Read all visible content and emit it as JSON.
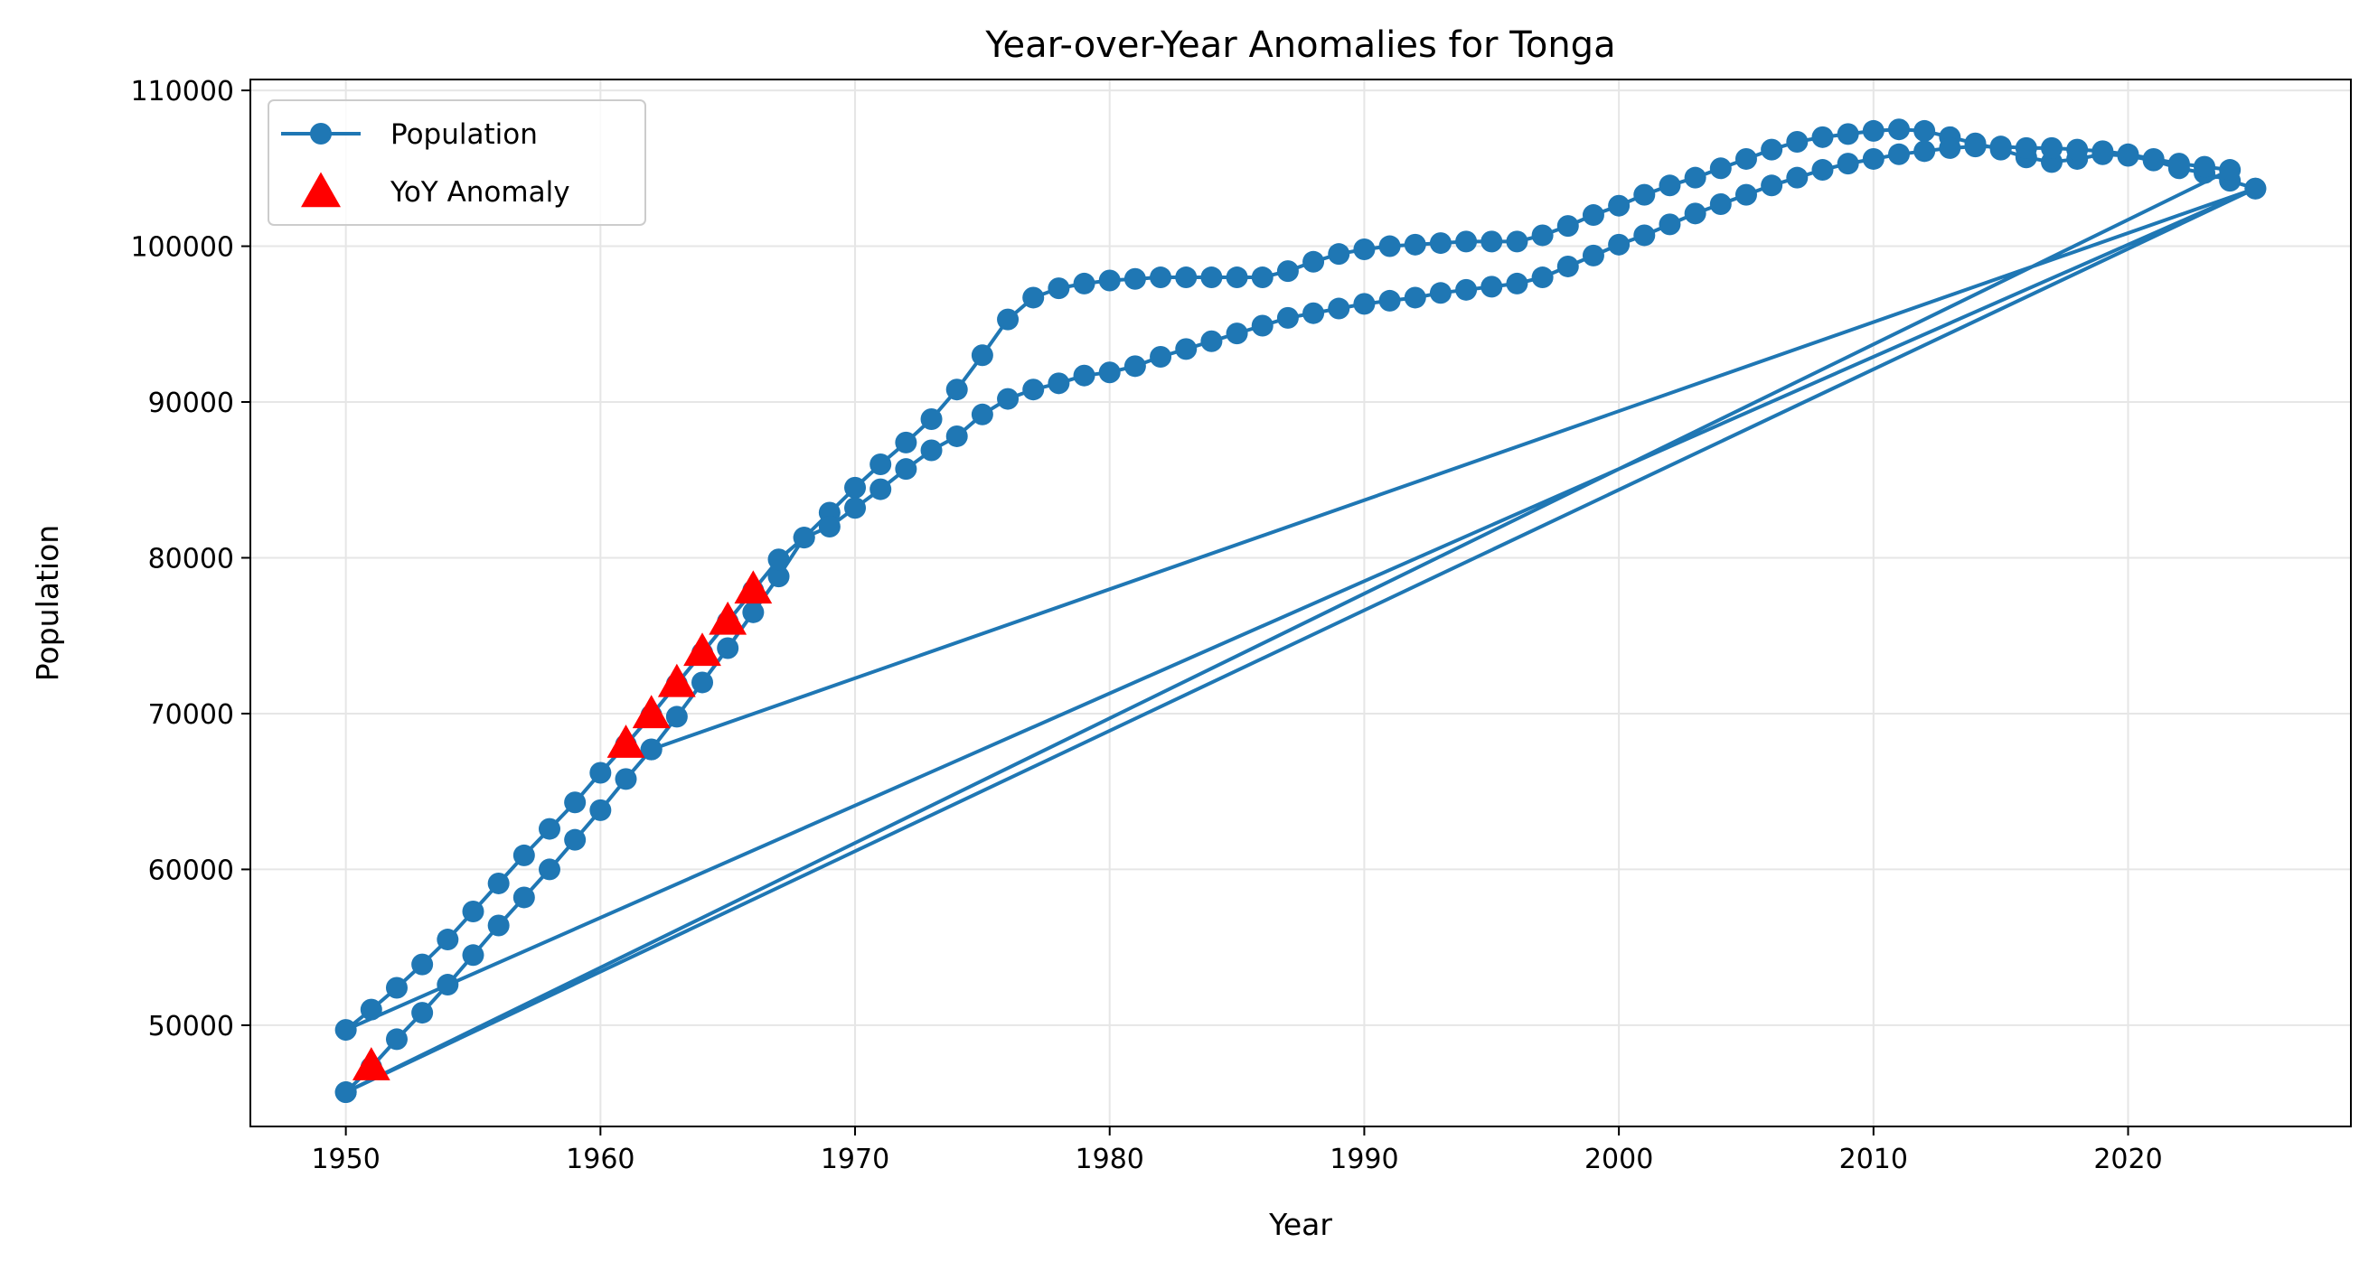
{
  "chart_data": {
    "type": "line",
    "title": "Year-over-Year Anomalies for Tonga",
    "xlabel": "Year",
    "ylabel": "Population",
    "xlim": [
      1946.25,
      2028.75
    ],
    "ylim": [
      43500,
      110700
    ],
    "xticks": [
      1950,
      1960,
      1970,
      1980,
      1990,
      2000,
      2010,
      2020
    ],
    "yticks": [
      50000,
      60000,
      70000,
      80000,
      90000,
      100000,
      110000
    ],
    "grid": true,
    "legend_position": "top-left",
    "colors": {
      "line": "#1f77b4",
      "anomaly": "#ff0000",
      "grid": "#e6e6e6",
      "axes": "#000000"
    },
    "series": [
      {
        "name": "Population",
        "marker": "circle",
        "points": [
          [
            1950,
            45700
          ],
          [
            1951,
            47300
          ],
          [
            1952,
            49100
          ],
          [
            1953,
            50800
          ],
          [
            1954,
            52600
          ],
          [
            1955,
            54500
          ],
          [
            1956,
            56400
          ],
          [
            1957,
            58200
          ],
          [
            1958,
            60000
          ],
          [
            1959,
            61900
          ],
          [
            1960,
            63800
          ],
          [
            1961,
            65800
          ],
          [
            1962,
            67700
          ],
          [
            1963,
            69800
          ],
          [
            1964,
            72000
          ],
          [
            1965,
            74200
          ],
          [
            1966,
            76500
          ],
          [
            1967,
            78800
          ],
          [
            1968,
            81300
          ],
          [
            1969,
            82900
          ],
          [
            1970,
            84500
          ],
          [
            1971,
            86000
          ],
          [
            1972,
            87400
          ],
          [
            1973,
            88900
          ],
          [
            1974,
            90800
          ],
          [
            1975,
            93000
          ],
          [
            1976,
            95300
          ],
          [
            1977,
            96700
          ],
          [
            1978,
            97300
          ],
          [
            1979,
            97600
          ],
          [
            1980,
            97800
          ],
          [
            1981,
            97900
          ],
          [
            1982,
            98000
          ],
          [
            1983,
            98000
          ],
          [
            1984,
            98000
          ],
          [
            1985,
            98000
          ],
          [
            1986,
            98000
          ],
          [
            1987,
            98400
          ],
          [
            1988,
            99000
          ],
          [
            1989,
            99500
          ],
          [
            1990,
            99800
          ],
          [
            1991,
            100000
          ],
          [
            1992,
            100100
          ],
          [
            1993,
            100200
          ],
          [
            1994,
            100300
          ],
          [
            1995,
            100300
          ],
          [
            1996,
            100300
          ],
          [
            1997,
            100700
          ],
          [
            1998,
            101300
          ],
          [
            1999,
            102000
          ],
          [
            2000,
            102600
          ],
          [
            2001,
            103300
          ],
          [
            2002,
            103900
          ],
          [
            2003,
            104400
          ],
          [
            2004,
            105000
          ],
          [
            2005,
            105600
          ],
          [
            2006,
            106200
          ],
          [
            2007,
            106700
          ],
          [
            2008,
            107000
          ],
          [
            2009,
            107200
          ],
          [
            2010,
            107400
          ],
          [
            2011,
            107500
          ],
          [
            2012,
            107400
          ],
          [
            2013,
            107000
          ],
          [
            2014,
            106600
          ],
          [
            2015,
            106200
          ],
          [
            2016,
            105700
          ],
          [
            2017,
            105400
          ],
          [
            2018,
            105600
          ],
          [
            2019,
            105900
          ],
          [
            2020,
            105800
          ],
          [
            2021,
            105500
          ],
          [
            2022,
            105000
          ],
          [
            2023,
            104700
          ],
          [
            2024,
            104200
          ],
          [
            2025,
            103700
          ],
          [
            1950,
            49700
          ],
          [
            1951,
            51000
          ],
          [
            1952,
            52400
          ],
          [
            1953,
            53900
          ],
          [
            1954,
            55500
          ],
          [
            1955,
            57300
          ],
          [
            1956,
            59100
          ],
          [
            1957,
            60900
          ],
          [
            1958,
            62600
          ],
          [
            1959,
            64300
          ],
          [
            1960,
            66200
          ],
          [
            1961,
            68000
          ],
          [
            1962,
            69900
          ],
          [
            1963,
            71900
          ],
          [
            1964,
            73900
          ],
          [
            1965,
            75900
          ],
          [
            1966,
            77900
          ],
          [
            1967,
            79900
          ],
          [
            1968,
            81300
          ],
          [
            1969,
            82000
          ],
          [
            1970,
            83200
          ],
          [
            1971,
            84400
          ],
          [
            1972,
            85700
          ],
          [
            1973,
            86900
          ],
          [
            1974,
            87800
          ],
          [
            1975,
            89200
          ],
          [
            1976,
            90200
          ],
          [
            1977,
            90800
          ],
          [
            1978,
            91200
          ],
          [
            1979,
            91700
          ],
          [
            1980,
            91900
          ],
          [
            1981,
            92300
          ],
          [
            1982,
            92900
          ],
          [
            1983,
            93400
          ],
          [
            1984,
            93900
          ],
          [
            1985,
            94400
          ],
          [
            1986,
            94900
          ],
          [
            1987,
            95400
          ],
          [
            1988,
            95700
          ],
          [
            1989,
            96000
          ],
          [
            1990,
            96300
          ],
          [
            1991,
            96500
          ],
          [
            1992,
            96700
          ],
          [
            1993,
            97000
          ],
          [
            1994,
            97200
          ],
          [
            1995,
            97400
          ],
          [
            1996,
            97600
          ],
          [
            1997,
            98000
          ],
          [
            1998,
            98700
          ],
          [
            1999,
            99400
          ],
          [
            2000,
            100100
          ],
          [
            2001,
            100700
          ],
          [
            2002,
            101400
          ],
          [
            2003,
            102100
          ],
          [
            2004,
            102700
          ],
          [
            2005,
            103300
          ],
          [
            2006,
            103900
          ],
          [
            2007,
            104400
          ],
          [
            2008,
            104900
          ],
          [
            2009,
            105300
          ],
          [
            2010,
            105600
          ],
          [
            2011,
            105900
          ],
          [
            2012,
            106100
          ],
          [
            2013,
            106300
          ],
          [
            2014,
            106400
          ],
          [
            2015,
            106400
          ],
          [
            2016,
            106300
          ],
          [
            2017,
            106300
          ],
          [
            2018,
            106200
          ],
          [
            2019,
            106100
          ],
          [
            2020,
            105900
          ],
          [
            2021,
            105600
          ],
          [
            2022,
            105300
          ],
          [
            2023,
            105100
          ],
          [
            2024,
            104900
          ],
          [
            1950,
            45700
          ],
          [
            2025,
            103700
          ],
          [
            1962,
            67700
          ]
        ]
      },
      {
        "name": "YoY Anomaly",
        "marker": "triangle",
        "points": [
          [
            1951,
            47300
          ],
          [
            1961,
            68000
          ],
          [
            1962,
            69900
          ],
          [
            1963,
            71900
          ],
          [
            1964,
            73900
          ],
          [
            1965,
            75900
          ],
          [
            1966,
            77900
          ]
        ]
      }
    ]
  }
}
